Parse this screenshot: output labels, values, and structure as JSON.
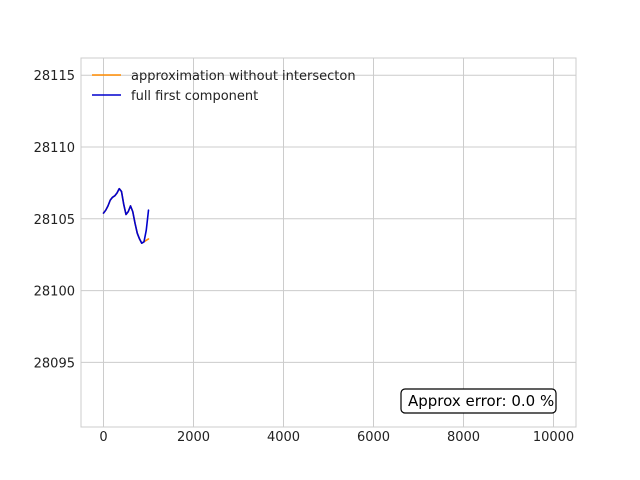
{
  "chart_data": {
    "type": "line",
    "xlim": [
      -500,
      10500
    ],
    "ylim": [
      28090.5,
      28116.2
    ],
    "xticks": [
      0,
      2000,
      4000,
      6000,
      8000,
      10000
    ],
    "yticks": [
      28095,
      28100,
      28105,
      28110,
      28115
    ],
    "grid": true,
    "legend_position": "upper-left",
    "series": [
      {
        "name": "approximation without intersecton",
        "color": "#ff8c00",
        "x": [
          0,
          50,
          100,
          150,
          200,
          250,
          300,
          350,
          400,
          450,
          500,
          550,
          600,
          650,
          700,
          750,
          800,
          850,
          900,
          950,
          1000
        ],
        "y": [
          28105.4,
          28105.6,
          28105.9,
          28106.3,
          28106.5,
          28106.6,
          28106.8,
          28107.1,
          28106.9,
          28106.0,
          28105.3,
          28105.5,
          28105.9,
          28105.5,
          28104.7,
          28104.0,
          28103.6,
          28103.3,
          28103.4,
          28103.5,
          28103.6
        ]
      },
      {
        "name": "full first component",
        "color": "#0000cd",
        "x": [
          0,
          50,
          100,
          150,
          200,
          250,
          300,
          350,
          400,
          450,
          500,
          550,
          600,
          650,
          700,
          750,
          800,
          850,
          900,
          950,
          1000
        ],
        "y": [
          28105.4,
          28105.6,
          28105.9,
          28106.3,
          28106.5,
          28106.6,
          28106.8,
          28107.1,
          28106.9,
          28106.0,
          28105.3,
          28105.5,
          28105.9,
          28105.5,
          28104.7,
          28104.0,
          28103.6,
          28103.3,
          28103.4,
          28104.2,
          28105.6
        ]
      }
    ],
    "annotation": "Approx error: 0.0 %"
  }
}
